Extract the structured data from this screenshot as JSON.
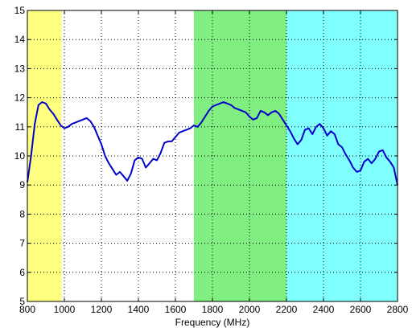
{
  "chart_data": {
    "type": "line",
    "title": "",
    "xlabel": "Frequency (MHz)",
    "ylabel": "",
    "xlim": [
      800,
      2800
    ],
    "ylim": [
      5,
      15
    ],
    "x_ticks": [
      800,
      1000,
      1200,
      1400,
      1600,
      1800,
      2000,
      2200,
      2400,
      2600,
      2800
    ],
    "y_ticks": [
      5,
      6,
      7,
      8,
      9,
      10,
      11,
      12,
      13,
      14,
      15
    ],
    "grid": true,
    "grid_style": "dotted",
    "bands": [
      {
        "x0": 800,
        "x1": 985,
        "color": "#ffff80"
      },
      {
        "x0": 1700,
        "x1": 2200,
        "color": "#80ee80"
      },
      {
        "x0": 2200,
        "x1": 2800,
        "color": "#80ffff"
      }
    ],
    "series": [
      {
        "color": "#0000cc",
        "points": [
          [
            800,
            9.1
          ],
          [
            820,
            10.0
          ],
          [
            840,
            11.1
          ],
          [
            860,
            11.75
          ],
          [
            880,
            11.85
          ],
          [
            900,
            11.8
          ],
          [
            920,
            11.6
          ],
          [
            940,
            11.45
          ],
          [
            960,
            11.25
          ],
          [
            980,
            11.05
          ],
          [
            1000,
            10.95
          ],
          [
            1020,
            11.0
          ],
          [
            1040,
            11.1
          ],
          [
            1060,
            11.15
          ],
          [
            1080,
            11.2
          ],
          [
            1100,
            11.25
          ],
          [
            1120,
            11.3
          ],
          [
            1140,
            11.2
          ],
          [
            1160,
            11.0
          ],
          [
            1180,
            10.7
          ],
          [
            1200,
            10.4
          ],
          [
            1220,
            10.0
          ],
          [
            1240,
            9.75
          ],
          [
            1260,
            9.55
          ],
          [
            1280,
            9.35
          ],
          [
            1300,
            9.45
          ],
          [
            1320,
            9.3
          ],
          [
            1340,
            9.15
          ],
          [
            1360,
            9.4
          ],
          [
            1380,
            9.85
          ],
          [
            1400,
            9.95
          ],
          [
            1420,
            9.9
          ],
          [
            1440,
            9.6
          ],
          [
            1460,
            9.75
          ],
          [
            1480,
            9.9
          ],
          [
            1500,
            9.85
          ],
          [
            1520,
            10.1
          ],
          [
            1540,
            10.45
          ],
          [
            1560,
            10.5
          ],
          [
            1580,
            10.5
          ],
          [
            1600,
            10.65
          ],
          [
            1620,
            10.8
          ],
          [
            1640,
            10.85
          ],
          [
            1660,
            10.9
          ],
          [
            1680,
            10.95
          ],
          [
            1700,
            11.05
          ],
          [
            1720,
            11.0
          ],
          [
            1740,
            11.15
          ],
          [
            1760,
            11.35
          ],
          [
            1780,
            11.55
          ],
          [
            1800,
            11.7
          ],
          [
            1820,
            11.75
          ],
          [
            1840,
            11.8
          ],
          [
            1860,
            11.85
          ],
          [
            1880,
            11.8
          ],
          [
            1900,
            11.75
          ],
          [
            1920,
            11.65
          ],
          [
            1940,
            11.6
          ],
          [
            1960,
            11.55
          ],
          [
            1980,
            11.5
          ],
          [
            2000,
            11.35
          ],
          [
            2020,
            11.25
          ],
          [
            2040,
            11.3
          ],
          [
            2060,
            11.55
          ],
          [
            2080,
            11.5
          ],
          [
            2100,
            11.4
          ],
          [
            2120,
            11.5
          ],
          [
            2140,
            11.55
          ],
          [
            2160,
            11.45
          ],
          [
            2180,
            11.25
          ],
          [
            2200,
            11.05
          ],
          [
            2220,
            10.85
          ],
          [
            2240,
            10.6
          ],
          [
            2260,
            10.4
          ],
          [
            2280,
            10.55
          ],
          [
            2300,
            10.9
          ],
          [
            2320,
            10.95
          ],
          [
            2340,
            10.75
          ],
          [
            2360,
            11.0
          ],
          [
            2380,
            11.1
          ],
          [
            2400,
            10.95
          ],
          [
            2420,
            10.7
          ],
          [
            2440,
            10.85
          ],
          [
            2460,
            10.75
          ],
          [
            2480,
            10.4
          ],
          [
            2500,
            10.3
          ],
          [
            2520,
            10.05
          ],
          [
            2540,
            9.85
          ],
          [
            2560,
            9.6
          ],
          [
            2580,
            9.45
          ],
          [
            2600,
            9.5
          ],
          [
            2620,
            9.8
          ],
          [
            2640,
            9.9
          ],
          [
            2660,
            9.75
          ],
          [
            2680,
            9.9
          ],
          [
            2700,
            10.15
          ],
          [
            2720,
            10.2
          ],
          [
            2740,
            9.95
          ],
          [
            2760,
            9.8
          ],
          [
            2780,
            9.6
          ],
          [
            2800,
            9.0
          ]
        ]
      }
    ]
  }
}
